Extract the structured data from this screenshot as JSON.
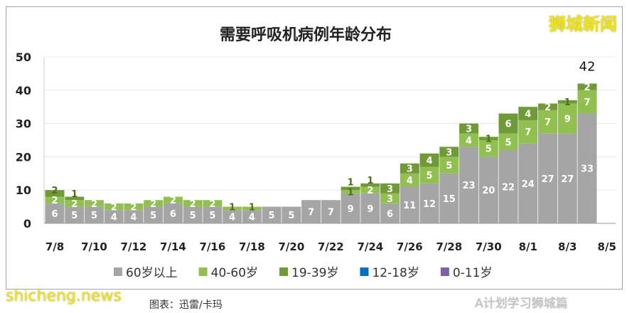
{
  "chart_data": {
    "type": "bar",
    "stacked": true,
    "title": "需要呼吸机病例年龄分布",
    "categories": [
      "7/8",
      "7/9",
      "7/10",
      "7/11",
      "7/12",
      "7/13",
      "7/14",
      "7/15",
      "7/16",
      "7/17",
      "7/18",
      "7/19",
      "7/20",
      "7/21",
      "7/22",
      "7/23",
      "7/24",
      "7/25",
      "7/26",
      "7/27",
      "7/28",
      "7/29",
      "7/30",
      "7/31",
      "8/1",
      "8/2",
      "8/3",
      "8/4"
    ],
    "x_tick_labels": [
      "7/8",
      "7/10",
      "7/12",
      "7/14",
      "7/16",
      "7/18",
      "7/20",
      "7/22",
      "7/24",
      "7/26",
      "7/28",
      "7/30",
      "8/1",
      "8/3",
      "8/5"
    ],
    "series": [
      {
        "name": "60岁以上",
        "color": "#a5a5a5",
        "values": [
          6,
          5,
          5,
          4,
          4,
          5,
          6,
          5,
          5,
          4,
          4,
          5,
          5,
          7,
          7,
          9,
          9,
          6,
          11,
          12,
          15,
          23,
          20,
          22,
          24,
          27,
          27,
          33
        ]
      },
      {
        "name": "40-60岁",
        "color": "#92c050",
        "values": [
          2,
          2,
          2,
          2,
          2,
          2,
          2,
          2,
          2,
          1,
          1,
          0,
          0,
          0,
          0,
          1,
          2,
          3,
          4,
          5,
          5,
          4,
          5,
          5,
          7,
          7,
          9,
          7
        ]
      },
      {
        "name": "19-39岁",
        "color": "#6f9a37",
        "values": [
          2,
          1,
          0,
          0,
          0,
          0,
          0,
          0,
          0,
          0,
          0,
          0,
          0,
          0,
          0,
          1,
          1,
          3,
          3,
          4,
          3,
          3,
          1,
          6,
          4,
          2,
          1,
          2
        ]
      },
      {
        "name": "12-18岁",
        "color": "#0070c0",
        "values": [
          0,
          0,
          0,
          0,
          0,
          0,
          0,
          0,
          0,
          0,
          0,
          0,
          0,
          0,
          0,
          0,
          0,
          0,
          0,
          0,
          0,
          0,
          0,
          0,
          0,
          0,
          0,
          0
        ]
      },
      {
        "name": "0-11岁",
        "color": "#7f5fa8",
        "values": [
          0,
          0,
          0,
          0,
          0,
          0,
          0,
          0,
          0,
          0,
          0,
          0,
          0,
          0,
          0,
          0,
          0,
          0,
          0,
          0,
          0,
          0,
          0,
          0,
          0,
          0,
          0,
          0
        ]
      }
    ],
    "annotation": "42",
    "ylim": [
      0,
      50
    ],
    "yticks": [
      0,
      10,
      20,
      30,
      40,
      50
    ],
    "grid": true,
    "legend": "bottom"
  },
  "watermarks": {
    "top_right": "狮城新闻",
    "bottom_left": "shicheng.news",
    "bottom_right": "A计划学习狮城篇",
    "caption": "图表：迅雷/卡玛"
  }
}
